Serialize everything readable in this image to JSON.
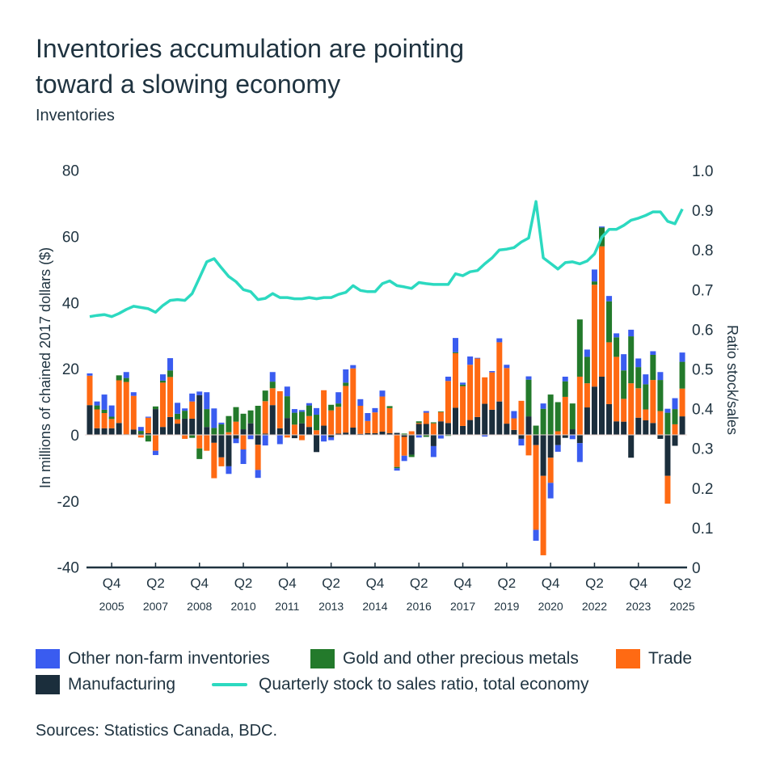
{
  "title_line1": "Inventories accumulation are pointing",
  "title_line2": "toward a slowing economy",
  "subtitle": "Inventories",
  "sources": "Sources: Statistics Canada, BDC.",
  "colors": {
    "other": "#3a5cf0",
    "gold": "#237a2b",
    "trade": "#ff6a13",
    "manufacturing": "#1b2e3c",
    "ratio": "#2cd9c0",
    "text": "#1f3340"
  },
  "legend": [
    {
      "label": "Other non-farm inventories",
      "color": "#3a5cf0",
      "type": "box"
    },
    {
      "label": "Gold and other precious metals",
      "color": "#237a2b",
      "type": "box"
    },
    {
      "label": "Trade",
      "color": "#ff6a13",
      "type": "box"
    },
    {
      "label": "Manufacturing",
      "color": "#1b2e3c",
      "type": "box"
    },
    {
      "label": "Quarterly stock to sales ratio, total economy",
      "color": "#2cd9c0",
      "type": "line"
    }
  ],
  "chart_data": {
    "type": "bar",
    "stacked": true,
    "ylabel": "In millions of chained 2017 dollars ($)",
    "y2label": "Ratio stock/sales",
    "ylim": [
      -40,
      80
    ],
    "yticks": [
      "80",
      "60",
      "40",
      "20",
      "0",
      "-20",
      "-40"
    ],
    "y2lim": [
      0,
      1.0
    ],
    "y2ticks": [
      "1.0",
      "0.9",
      "0.8",
      "0.7",
      "0.6",
      "0.5",
      "0.4",
      "0.3",
      "0.2",
      "0.1",
      "0"
    ],
    "grid": false,
    "legend_position": "bottom",
    "xticks": [
      {
        "q": "Q4",
        "year": "2005"
      },
      {
        "q": "Q2",
        "year": "2007"
      },
      {
        "q": "Q4",
        "year": "2008"
      },
      {
        "q": "Q2",
        "year": "2010"
      },
      {
        "q": "Q4",
        "year": "2011"
      },
      {
        "q": "Q2",
        "year": "2013"
      },
      {
        "q": "Q4",
        "year": "2014"
      },
      {
        "q": "Q2",
        "year": "2016"
      },
      {
        "q": "Q4",
        "year": "2017"
      },
      {
        "q": "Q2",
        "year": "2019"
      },
      {
        "q": "Q4",
        "year": "2020"
      },
      {
        "q": "Q2",
        "year": "2022"
      },
      {
        "q": "Q4",
        "year": "2023"
      },
      {
        "q": "Q2",
        "year": "2025"
      }
    ],
    "categories": [
      "Q1 2005",
      "Q2 2005",
      "Q3 2005",
      "Q4 2005",
      "Q1 2006",
      "Q2 2006",
      "Q3 2006",
      "Q4 2006",
      "Q1 2007",
      "Q2 2007",
      "Q3 2007",
      "Q4 2007",
      "Q1 2008",
      "Q2 2008",
      "Q3 2008",
      "Q4 2008",
      "Q1 2009",
      "Q2 2009",
      "Q3 2009",
      "Q4 2009",
      "Q1 2010",
      "Q2 2010",
      "Q3 2010",
      "Q4 2010",
      "Q1 2011",
      "Q2 2011",
      "Q3 2011",
      "Q4 2011",
      "Q1 2012",
      "Q2 2012",
      "Q3 2012",
      "Q4 2012",
      "Q1 2013",
      "Q2 2013",
      "Q3 2013",
      "Q4 2013",
      "Q1 2014",
      "Q2 2014",
      "Q3 2014",
      "Q4 2014",
      "Q1 2015",
      "Q2 2015",
      "Q3 2015",
      "Q4 2015",
      "Q1 2016",
      "Q2 2016",
      "Q3 2016",
      "Q4 2016",
      "Q1 2017",
      "Q2 2017",
      "Q3 2017",
      "Q4 2017",
      "Q1 2018",
      "Q2 2018",
      "Q3 2018",
      "Q4 2018",
      "Q1 2019",
      "Q2 2019",
      "Q3 2019",
      "Q4 2019",
      "Q1 2020",
      "Q2 2020",
      "Q3 2020",
      "Q4 2020",
      "Q1 2021",
      "Q2 2021",
      "Q3 2021",
      "Q4 2021",
      "Q1 2022",
      "Q2 2022",
      "Q3 2022",
      "Q4 2022",
      "Q1 2023",
      "Q2 2023",
      "Q3 2023",
      "Q4 2023",
      "Q1 2024",
      "Q2 2024",
      "Q3 2024",
      "Q4 2024",
      "Q1 2025",
      "Q2 2025"
    ],
    "series": [
      {
        "name": "Manufacturing",
        "key": "manufacturing",
        "values": [
          9.0,
          2.0,
          2.0,
          2.0,
          3.6,
          0.2,
          1.6,
          0.4,
          0.5,
          7.8,
          2.4,
          5.4,
          3.4,
          4.9,
          4.9,
          12,
          2.4,
          -2.4,
          -6.8,
          -9.5,
          -1.1,
          1.7,
          3.5,
          -3,
          0.4,
          9.0,
          2.0,
          5.1,
          -1.0,
          3.5,
          2.4,
          -5.2,
          2.8,
          -0.7,
          0.4,
          0.7,
          2.2,
          0.3,
          0.5,
          0.5,
          1.0,
          0.5,
          0.6,
          -0.6,
          -6.0,
          3.3,
          3.3,
          -3.4,
          4.1,
          3.6,
          8.2,
          2.7,
          4.5,
          5.4,
          9.4,
          7.6,
          10.1,
          3.4,
          1.5,
          -1.2,
          5.6,
          -3.1,
          -12.4,
          -6.9,
          -3.1,
          -0.9,
          1.7,
          -2.5,
          8.3,
          14.6,
          17.6,
          9.3,
          4.1,
          4.0,
          -6.9,
          5.2,
          4.4,
          3.6,
          -1.2,
          -12.4,
          -3.3,
          5.6
        ]
      },
      {
        "name": "Trade",
        "key": "trade",
        "values": [
          8.9,
          5.7,
          4.6,
          2.8,
          12.9,
          15.8,
          10.2,
          -0.8,
          4.7,
          -4.8,
          13.4,
          12.1,
          1.3,
          -1.2,
          5.2,
          -4.1,
          -4.8,
          -10.7,
          -2.7,
          0.8,
          4.0,
          -4.4,
          0,
          -7.6,
          9.8,
          5.1,
          11.2,
          -0.8,
          3.1,
          -1.6,
          3.3,
          1.4,
          10.7,
          7.4,
          8.1,
          14.1,
          17.9,
          8.5,
          3.7,
          6.3,
          10.6,
          7.6,
          -9.7,
          -5.7,
          1.1,
          0.3,
          3.4,
          3.5,
          2.8,
          12.7,
          16.5,
          12.0,
          16.7,
          17.7,
          8.0,
          11.3,
          17.9,
          16.8,
          3.5,
          10.3,
          -6.2,
          -25.6,
          -24,
          -7.6,
          1.1,
          11.5,
          0,
          17.6,
          7.3,
          30.8,
          39.4,
          18.7,
          19.5,
          6.9,
          15.6,
          8.9,
          3.3,
          13.0,
          7.2,
          -8.4,
          3.2,
          8.4
        ]
      },
      {
        "name": "Gold and other precious metals",
        "key": "gold",
        "values": [
          0,
          1.2,
          1.0,
          0.7,
          1.5,
          1.2,
          0,
          0.8,
          -2,
          0.8,
          0.6,
          2,
          1.7,
          2.4,
          -0.9,
          -3.2,
          5.4,
          2.1,
          3.2,
          4.9,
          4.4,
          4.7,
          3.9,
          8.8,
          3.2,
          2.0,
          0,
          6.6,
          3.6,
          3.5,
          3.2,
          4.7,
          0,
          1.7,
          1.0,
          1.0,
          0,
          0,
          0,
          0,
          0,
          0.6,
          -0.4,
          0.4,
          -0.7,
          0.5,
          -0.6,
          0.3,
          0.2,
          -0.3,
          0.3,
          0.5,
          0,
          0,
          0,
          0,
          0,
          0,
          0,
          0,
          11.1,
          2.8,
          7.9,
          12.2,
          8.8,
          4.7,
          7.8,
          17.3,
          8.0,
          1.0,
          5.7,
          12.4,
          5.9,
          8.6,
          14.2,
          6.4,
          7.6,
          7.6,
          9.4,
          6.7,
          4.6,
          8.1
        ]
      },
      {
        "name": "Other non-farm inventories",
        "key": "other",
        "values": [
          0.7,
          1.2,
          4.6,
          3.4,
          0,
          1.8,
          1.1,
          1.2,
          0.3,
          -1.3,
          1.9,
          3.7,
          3.3,
          0.7,
          2.4,
          1.1,
          5.1,
          5.9,
          0.5,
          -2.3,
          -1.4,
          -4.4,
          -1.3,
          -2.4,
          -3.2,
          2.9,
          -2.8,
          2.9,
          1.1,
          0.5,
          0.7,
          2.0,
          -2.0,
          -0.9,
          3.4,
          4.0,
          1.0,
          2.0,
          2.4,
          1.3,
          1.8,
          0,
          -0.7,
          -1.6,
          0,
          -0.8,
          0.5,
          -3.3,
          -1.1,
          1.3,
          4.3,
          0.6,
          2.5,
          0.2,
          -0.5,
          0.4,
          1.2,
          1.0,
          2.2,
          -2.0,
          1.0,
          -3.3,
          1.6,
          -4.7,
          -2.0,
          1.4,
          -1.3,
          -5.7,
          2.2,
          3.6,
          0.3,
          1.6,
          1.2,
          4.9,
          2.0,
          2.6,
          3.0,
          1.1,
          2.4,
          1.2,
          3.3,
          2.8
        ]
      }
    ],
    "line_series": {
      "name": "Quarterly stock to sales ratio, total economy",
      "axis": "right",
      "values": [
        0.632,
        0.635,
        0.637,
        0.632,
        0.64,
        0.65,
        0.658,
        0.655,
        0.652,
        0.643,
        0.66,
        0.673,
        0.675,
        0.673,
        0.69,
        0.73,
        0.77,
        0.778,
        0.755,
        0.733,
        0.72,
        0.7,
        0.695,
        0.675,
        0.678,
        0.69,
        0.68,
        0.68,
        0.677,
        0.677,
        0.68,
        0.677,
        0.68,
        0.68,
        0.688,
        0.693,
        0.71,
        0.698,
        0.695,
        0.695,
        0.715,
        0.722,
        0.71,
        0.707,
        0.703,
        0.718,
        0.715,
        0.713,
        0.713,
        0.713,
        0.74,
        0.735,
        0.745,
        0.748,
        0.765,
        0.78,
        0.8,
        0.802,
        0.806,
        0.82,
        0.83,
        0.922,
        0.78,
        0.766,
        0.752,
        0.768,
        0.77,
        0.765,
        0.772,
        0.79,
        0.832,
        0.852,
        0.852,
        0.862,
        0.875,
        0.88,
        0.887,
        0.896,
        0.896,
        0.872,
        0.866,
        0.903
      ]
    }
  }
}
